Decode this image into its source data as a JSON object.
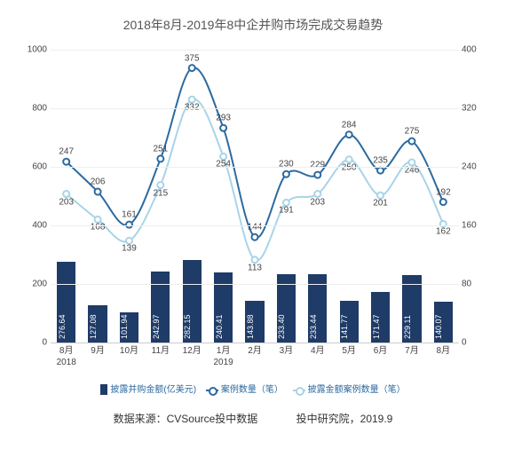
{
  "title": "2018年8月-2019年8中企并购市场完成交易趋势",
  "chart": {
    "type": "combo-bar-line",
    "background_color": "#ffffff",
    "grid_color": "#eeeeee",
    "axis_color": "#cccccc",
    "text_color": "#444444",
    "categories": [
      "8月",
      "9月",
      "10月",
      "11月",
      "12月",
      "1月",
      "2月",
      "3月",
      "4月",
      "5月",
      "6月",
      "7月",
      "8月"
    ],
    "year_labels": {
      "0": "2018",
      "5": "2019"
    },
    "y_left": {
      "min": 0,
      "max": 1000,
      "step": 200,
      "ticks": [
        0,
        200,
        400,
        600,
        800,
        1000
      ]
    },
    "y_right": {
      "min": 0,
      "max": 400,
      "step": 80,
      "ticks": [
        0,
        80,
        160,
        240,
        320,
        400
      ]
    },
    "bars": {
      "values": [
        276.64,
        127.08,
        101.94,
        242.97,
        282.15,
        240.41,
        143.88,
        233.4,
        233.44,
        141.77,
        171.47,
        229.11,
        140.07
      ],
      "color": "#1f3b67",
      "width_ratio": 0.6,
      "label_color": "#ffffff",
      "label_fontsize": 9
    },
    "line1": {
      "name": "案例数量（笔）",
      "values": [
        247,
        206,
        161,
        251,
        375,
        293,
        144,
        230,
        229,
        284,
        235,
        275,
        192
      ],
      "color": "#2c6aa0",
      "marker": "circle"
    },
    "line2": {
      "name": "披露金额案例数量（笔）",
      "values": [
        203,
        168,
        139,
        215,
        332,
        254,
        113,
        191,
        203,
        250,
        201,
        246,
        162
      ],
      "color": "#a8d4e8",
      "marker": "circle"
    }
  },
  "legend": {
    "bar": "披露并购金额(亿美元)",
    "line1": "案例数量（笔）",
    "line2": "披露金额案例数量（笔）"
  },
  "footer": {
    "source": "数据来源：CVSource投中数据",
    "org": "投中研究院，2019.9"
  }
}
